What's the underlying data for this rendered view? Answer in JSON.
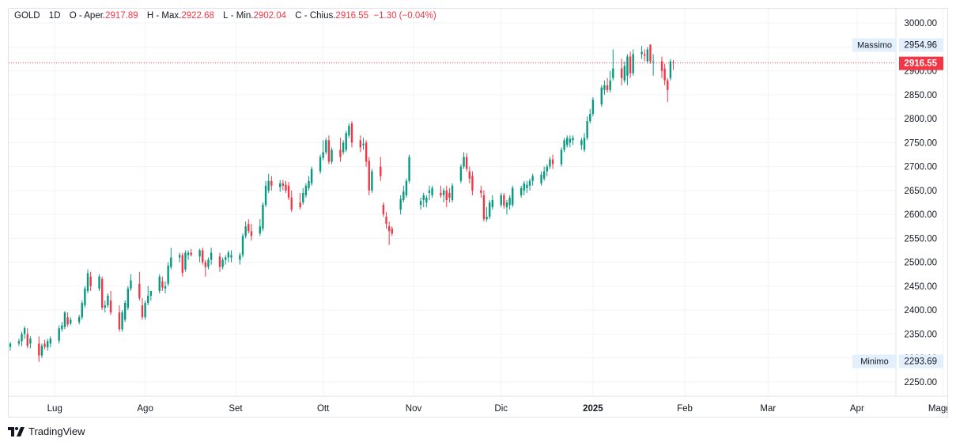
{
  "legend": {
    "symbol": "GOLD",
    "interval": "1D",
    "open_label": "O",
    "open_text": "- Aper.",
    "open_value": "2917.89",
    "high_label": "H",
    "high_text": "- Max.",
    "high_value": "2922.68",
    "low_label": "L",
    "low_text": "- Min.",
    "low_value": "2902.04",
    "close_label": "C",
    "close_text": "- Chius.",
    "close_value": "2916.55",
    "change_value": "−1.30 (−0.04%)"
  },
  "badges": {
    "max_label": "Massimo",
    "max_value": "2954.96",
    "min_label": "Minimo",
    "min_value": "2293.69",
    "last_value": "2916.55"
  },
  "brand": {
    "name": "TradingView"
  },
  "colors": {
    "up": "#089981",
    "down": "#f23645",
    "grid": "#f0f3fa",
    "text": "#131722",
    "badge_bg": "#e3effd"
  },
  "chart_data": {
    "type": "candlestick",
    "ylim": [
      2220,
      3030
    ],
    "y_ticks": [
      2250,
      2300,
      2350,
      2400,
      2450,
      2500,
      2550,
      2600,
      2650,
      2700,
      2750,
      2800,
      2850,
      2900,
      2950,
      3000
    ],
    "x_labels": [
      "Lug",
      "Ago",
      "Set",
      "Ott",
      "Nov",
      "Dic",
      "2025",
      "Feb",
      "Mar",
      "Apr",
      "Maggio"
    ],
    "x_label_days": [
      15.5,
      47,
      78.5,
      109,
      140.5,
      171,
      203,
      235,
      264,
      295,
      325
    ],
    "last_price": 2916.55,
    "highest": 2954.96,
    "lowest": 2293.69,
    "candles": [
      {
        "d": 0,
        "o": 2323,
        "h": 2333,
        "l": 2315,
        "c": 2330
      },
      {
        "d": 3,
        "o": 2330,
        "h": 2340,
        "l": 2325,
        "c": 2335
      },
      {
        "d": 4,
        "o": 2335,
        "h": 2355,
        "l": 2325,
        "c": 2350
      },
      {
        "d": 5,
        "o": 2350,
        "h": 2366,
        "l": 2340,
        "c": 2362
      },
      {
        "d": 6,
        "o": 2350,
        "h": 2362,
        "l": 2320,
        "c": 2325
      },
      {
        "d": 7,
        "o": 2330,
        "h": 2345,
        "l": 2320,
        "c": 2340
      },
      {
        "d": 10,
        "o": 2330,
        "h": 2345,
        "l": 2292,
        "c": 2305
      },
      {
        "d": 11,
        "o": 2305,
        "h": 2330,
        "l": 2300,
        "c": 2325
      },
      {
        "d": 12,
        "o": 2330,
        "h": 2338,
        "l": 2318,
        "c": 2323
      },
      {
        "d": 13,
        "o": 2322,
        "h": 2340,
        "l": 2315,
        "c": 2335
      },
      {
        "d": 14,
        "o": 2330,
        "h": 2345,
        "l": 2322,
        "c": 2340
      },
      {
        "d": 17,
        "o": 2336,
        "h": 2368,
        "l": 2330,
        "c": 2362
      },
      {
        "d": 18,
        "o": 2360,
        "h": 2375,
        "l": 2355,
        "c": 2368
      },
      {
        "d": 19,
        "o": 2365,
        "h": 2398,
        "l": 2360,
        "c": 2395
      },
      {
        "d": 20,
        "o": 2385,
        "h": 2395,
        "l": 2365,
        "c": 2370
      },
      {
        "d": 21,
        "o": 2372,
        "h": 2385,
        "l": 2368,
        "c": 2380
      },
      {
        "d": 24,
        "o": 2375,
        "h": 2390,
        "l": 2370,
        "c": 2385
      },
      {
        "d": 25,
        "o": 2385,
        "h": 2420,
        "l": 2380,
        "c": 2415
      },
      {
        "d": 26,
        "o": 2410,
        "h": 2450,
        "l": 2405,
        "c": 2445
      },
      {
        "d": 27,
        "o": 2440,
        "h": 2485,
        "l": 2435,
        "c": 2477
      },
      {
        "d": 28,
        "o": 2470,
        "h": 2480,
        "l": 2440,
        "c": 2450
      },
      {
        "d": 31,
        "o": 2445,
        "h": 2475,
        "l": 2440,
        "c": 2470
      },
      {
        "d": 32,
        "o": 2465,
        "h": 2470,
        "l": 2400,
        "c": 2405
      },
      {
        "d": 33,
        "o": 2405,
        "h": 2420,
        "l": 2395,
        "c": 2410
      },
      {
        "d": 34,
        "o": 2410,
        "h": 2435,
        "l": 2405,
        "c": 2430
      },
      {
        "d": 35,
        "o": 2420,
        "h": 2440,
        "l": 2390,
        "c": 2395
      },
      {
        "d": 38,
        "o": 2395,
        "h": 2410,
        "l": 2355,
        "c": 2360
      },
      {
        "d": 39,
        "o": 2360,
        "h": 2400,
        "l": 2355,
        "c": 2395
      },
      {
        "d": 40,
        "o": 2380,
        "h": 2420,
        "l": 2375,
        "c": 2415
      },
      {
        "d": 41,
        "o": 2405,
        "h": 2450,
        "l": 2400,
        "c": 2445
      },
      {
        "d": 42,
        "o": 2445,
        "h": 2475,
        "l": 2440,
        "c": 2462
      },
      {
        "d": 45,
        "o": 2455,
        "h": 2480,
        "l": 2420,
        "c": 2425
      },
      {
        "d": 46,
        "o": 2410,
        "h": 2425,
        "l": 2380,
        "c": 2385
      },
      {
        "d": 47,
        "o": 2385,
        "h": 2420,
        "l": 2380,
        "c": 2415
      },
      {
        "d": 48,
        "o": 2415,
        "h": 2450,
        "l": 2410,
        "c": 2430
      },
      {
        "d": 49,
        "o": 2430,
        "h": 2440,
        "l": 2420,
        "c": 2440
      },
      {
        "d": 52,
        "o": 2440,
        "h": 2475,
        "l": 2435,
        "c": 2470
      },
      {
        "d": 53,
        "o": 2460,
        "h": 2470,
        "l": 2440,
        "c": 2447
      },
      {
        "d": 54,
        "o": 2445,
        "h": 2460,
        "l": 2435,
        "c": 2450
      },
      {
        "d": 55,
        "o": 2455,
        "h": 2500,
        "l": 2450,
        "c": 2493
      },
      {
        "d": 56,
        "o": 2490,
        "h": 2530,
        "l": 2485,
        "c": 2510
      },
      {
        "d": 59,
        "o": 2510,
        "h": 2520,
        "l": 2500,
        "c": 2515
      },
      {
        "d": 60,
        "o": 2515,
        "h": 2520,
        "l": 2470,
        "c": 2478
      },
      {
        "d": 61,
        "o": 2485,
        "h": 2525,
        "l": 2480,
        "c": 2520
      },
      {
        "d": 62,
        "o": 2515,
        "h": 2525,
        "l": 2505,
        "c": 2520
      },
      {
        "d": 63,
        "o": 2520,
        "h": 2528,
        "l": 2512,
        "c": 2515
      },
      {
        "d": 66,
        "o": 2512,
        "h": 2528,
        "l": 2500,
        "c": 2525
      },
      {
        "d": 67,
        "o": 2525,
        "h": 2530,
        "l": 2495,
        "c": 2500
      },
      {
        "d": 68,
        "o": 2500,
        "h": 2505,
        "l": 2470,
        "c": 2490
      },
      {
        "d": 69,
        "o": 2490,
        "h": 2510,
        "l": 2485,
        "c": 2505
      },
      {
        "d": 70,
        "o": 2505,
        "h": 2530,
        "l": 2495,
        "c": 2520
      },
      {
        "d": 73,
        "o": 2512,
        "h": 2520,
        "l": 2480,
        "c": 2490
      },
      {
        "d": 74,
        "o": 2490,
        "h": 2510,
        "l": 2485,
        "c": 2505
      },
      {
        "d": 75,
        "o": 2505,
        "h": 2515,
        "l": 2495,
        "c": 2510
      },
      {
        "d": 76,
        "o": 2510,
        "h": 2525,
        "l": 2500,
        "c": 2520
      },
      {
        "d": 77,
        "o": 2510,
        "h": 2525,
        "l": 2500,
        "c": 2515
      },
      {
        "d": 80,
        "o": 2505,
        "h": 2520,
        "l": 2495,
        "c": 2515
      },
      {
        "d": 81,
        "o": 2515,
        "h": 2560,
        "l": 2510,
        "c": 2555
      },
      {
        "d": 82,
        "o": 2555,
        "h": 2585,
        "l": 2550,
        "c": 2575
      },
      {
        "d": 83,
        "o": 2580,
        "h": 2590,
        "l": 2560,
        "c": 2565
      },
      {
        "d": 84,
        "o": 2565,
        "h": 2580,
        "l": 2545,
        "c": 2555
      },
      {
        "d": 87,
        "o": 2560,
        "h": 2590,
        "l": 2555,
        "c": 2575
      },
      {
        "d": 88,
        "o": 2570,
        "h": 2625,
        "l": 2565,
        "c": 2620
      },
      {
        "d": 89,
        "o": 2620,
        "h": 2670,
        "l": 2615,
        "c": 2660
      },
      {
        "d": 90,
        "o": 2650,
        "h": 2685,
        "l": 2645,
        "c": 2670
      },
      {
        "d": 91,
        "o": 2670,
        "h": 2680,
        "l": 2650,
        "c": 2660
      },
      {
        "d": 94,
        "o": 2657,
        "h": 2672,
        "l": 2647,
        "c": 2665
      },
      {
        "d": 95,
        "o": 2665,
        "h": 2672,
        "l": 2650,
        "c": 2660
      },
      {
        "d": 96,
        "o": 2662,
        "h": 2670,
        "l": 2645,
        "c": 2650
      },
      {
        "d": 97,
        "o": 2660,
        "h": 2668,
        "l": 2630,
        "c": 2635
      },
      {
        "d": 98,
        "o": 2635,
        "h": 2650,
        "l": 2605,
        "c": 2610
      },
      {
        "d": 101,
        "o": 2625,
        "h": 2645,
        "l": 2610,
        "c": 2615
      },
      {
        "d": 102,
        "o": 2625,
        "h": 2655,
        "l": 2620,
        "c": 2645
      },
      {
        "d": 103,
        "o": 2640,
        "h": 2665,
        "l": 2635,
        "c": 2660
      },
      {
        "d": 104,
        "o": 2655,
        "h": 2680,
        "l": 2650,
        "c": 2670
      },
      {
        "d": 105,
        "o": 2665,
        "h": 2700,
        "l": 2660,
        "c": 2695
      },
      {
        "d": 108,
        "o": 2690,
        "h": 2725,
        "l": 2685,
        "c": 2720
      },
      {
        "d": 109,
        "o": 2718,
        "h": 2755,
        "l": 2713,
        "c": 2730
      },
      {
        "d": 110,
        "o": 2730,
        "h": 2760,
        "l": 2725,
        "c": 2755
      },
      {
        "d": 111,
        "o": 2755,
        "h": 2765,
        "l": 2705,
        "c": 2710
      },
      {
        "d": 112,
        "o": 2710,
        "h": 2740,
        "l": 2705,
        "c": 2735
      },
      {
        "d": 115,
        "o": 2735,
        "h": 2760,
        "l": 2710,
        "c": 2720
      },
      {
        "d": 116,
        "o": 2730,
        "h": 2755,
        "l": 2725,
        "c": 2750
      },
      {
        "d": 117,
        "o": 2735,
        "h": 2775,
        "l": 2730,
        "c": 2770
      },
      {
        "d": 118,
        "o": 2765,
        "h": 2790,
        "l": 2760,
        "c": 2785
      },
      {
        "d": 119,
        "o": 2790,
        "h": 2795,
        "l": 2740,
        "c": 2750
      },
      {
        "d": 122,
        "o": 2755,
        "h": 2765,
        "l": 2730,
        "c": 2740
      },
      {
        "d": 123,
        "o": 2745,
        "h": 2760,
        "l": 2735,
        "c": 2748
      },
      {
        "d": 124,
        "o": 2750,
        "h": 2755,
        "l": 2700,
        "c": 2710
      },
      {
        "d": 125,
        "o": 2712,
        "h": 2720,
        "l": 2640,
        "c": 2650
      },
      {
        "d": 126,
        "o": 2650,
        "h": 2695,
        "l": 2645,
        "c": 2690
      },
      {
        "d": 129,
        "o": 2700,
        "h": 2720,
        "l": 2670,
        "c": 2680
      },
      {
        "d": 130,
        "o": 2620,
        "h": 2625,
        "l": 2595,
        "c": 2600
      },
      {
        "d": 131,
        "o": 2595,
        "h": 2605,
        "l": 2570,
        "c": 2580
      },
      {
        "d": 132,
        "o": 2575,
        "h": 2585,
        "l": 2536,
        "c": 2565
      },
      {
        "d": 133,
        "o": 2570,
        "h": 2575,
        "l": 2555,
        "c": 2560
      },
      {
        "d": 136,
        "o": 2610,
        "h": 2640,
        "l": 2600,
        "c": 2632
      },
      {
        "d": 137,
        "o": 2630,
        "h": 2660,
        "l": 2625,
        "c": 2648
      },
      {
        "d": 138,
        "o": 2640,
        "h": 2675,
        "l": 2635,
        "c": 2670
      },
      {
        "d": 139,
        "o": 2670,
        "h": 2725,
        "l": 2665,
        "c": 2720
      },
      {
        "d": 143,
        "o": 2620,
        "h": 2635,
        "l": 2610,
        "c": 2628
      },
      {
        "d": 144,
        "o": 2630,
        "h": 2645,
        "l": 2615,
        "c": 2640
      },
      {
        "d": 145,
        "o": 2625,
        "h": 2640,
        "l": 2615,
        "c": 2635
      },
      {
        "d": 146,
        "o": 2645,
        "h": 2660,
        "l": 2630,
        "c": 2650
      },
      {
        "d": 147,
        "o": 2640,
        "h": 2660,
        "l": 2635,
        "c": 2655
      },
      {
        "d": 150,
        "o": 2645,
        "h": 2660,
        "l": 2635,
        "c": 2640
      },
      {
        "d": 151,
        "o": 2640,
        "h": 2655,
        "l": 2625,
        "c": 2650
      },
      {
        "d": 152,
        "o": 2650,
        "h": 2660,
        "l": 2615,
        "c": 2630
      },
      {
        "d": 153,
        "o": 2645,
        "h": 2655,
        "l": 2625,
        "c": 2635
      },
      {
        "d": 154,
        "o": 2630,
        "h": 2665,
        "l": 2625,
        "c": 2660
      },
      {
        "d": 157,
        "o": 2670,
        "h": 2705,
        "l": 2665,
        "c": 2700
      },
      {
        "d": 158,
        "o": 2700,
        "h": 2730,
        "l": 2695,
        "c": 2720
      },
      {
        "d": 159,
        "o": 2720,
        "h": 2728,
        "l": 2690,
        "c": 2695
      },
      {
        "d": 160,
        "o": 2690,
        "h": 2700,
        "l": 2665,
        "c": 2675
      },
      {
        "d": 161,
        "o": 2680,
        "h": 2690,
        "l": 2640,
        "c": 2650
      },
      {
        "d": 164,
        "o": 2650,
        "h": 2660,
        "l": 2635,
        "c": 2645
      },
      {
        "d": 165,
        "o": 2640,
        "h": 2650,
        "l": 2585,
        "c": 2590
      },
      {
        "d": 166,
        "o": 2590,
        "h": 2615,
        "l": 2585,
        "c": 2595
      },
      {
        "d": 167,
        "o": 2595,
        "h": 2630,
        "l": 2590,
        "c": 2625
      },
      {
        "d": 168,
        "o": 2615,
        "h": 2640,
        "l": 2610,
        "c": 2630
      },
      {
        "d": 171,
        "o": 2620,
        "h": 2645,
        "l": 2615,
        "c": 2640
      },
      {
        "d": 172,
        "o": 2640,
        "h": 2645,
        "l": 2612,
        "c": 2618
      },
      {
        "d": 173,
        "o": 2615,
        "h": 2630,
        "l": 2600,
        "c": 2625
      },
      {
        "d": 174,
        "o": 2620,
        "h": 2640,
        "l": 2610,
        "c": 2635
      },
      {
        "d": 175,
        "o": 2620,
        "h": 2660,
        "l": 2615,
        "c": 2655
      },
      {
        "d": 178,
        "o": 2640,
        "h": 2660,
        "l": 2635,
        "c": 2655
      },
      {
        "d": 179,
        "o": 2650,
        "h": 2670,
        "l": 2640,
        "c": 2665
      },
      {
        "d": 180,
        "o": 2655,
        "h": 2670,
        "l": 2645,
        "c": 2662
      },
      {
        "d": 181,
        "o": 2660,
        "h": 2675,
        "l": 2650,
        "c": 2670
      },
      {
        "d": 182,
        "o": 2670,
        "h": 2685,
        "l": 2660,
        "c": 2680
      },
      {
        "d": 185,
        "o": 2665,
        "h": 2690,
        "l": 2660,
        "c": 2683
      },
      {
        "d": 186,
        "o": 2675,
        "h": 2700,
        "l": 2670,
        "c": 2690
      },
      {
        "d": 187,
        "o": 2690,
        "h": 2705,
        "l": 2680,
        "c": 2700
      },
      {
        "d": 188,
        "o": 2700,
        "h": 2720,
        "l": 2695,
        "c": 2715
      },
      {
        "d": 189,
        "o": 2715,
        "h": 2725,
        "l": 2695,
        "c": 2705
      },
      {
        "d": 192,
        "o": 2705,
        "h": 2740,
        "l": 2700,
        "c": 2735
      },
      {
        "d": 193,
        "o": 2735,
        "h": 2760,
        "l": 2730,
        "c": 2755
      },
      {
        "d": 194,
        "o": 2745,
        "h": 2765,
        "l": 2740,
        "c": 2760
      },
      {
        "d": 195,
        "o": 2750,
        "h": 2765,
        "l": 2740,
        "c": 2758
      },
      {
        "d": 196,
        "o": 2755,
        "h": 2765,
        "l": 2745,
        "c": 2760
      },
      {
        "d": 199,
        "o": 2745,
        "h": 2760,
        "l": 2735,
        "c": 2755
      },
      {
        "d": 200,
        "o": 2735,
        "h": 2770,
        "l": 2730,
        "c": 2760
      },
      {
        "d": 201,
        "o": 2760,
        "h": 2805,
        "l": 2755,
        "c": 2795
      },
      {
        "d": 202,
        "o": 2795,
        "h": 2820,
        "l": 2790,
        "c": 2810
      },
      {
        "d": 203,
        "o": 2810,
        "h": 2845,
        "l": 2805,
        "c": 2840
      },
      {
        "d": 206,
        "o": 2830,
        "h": 2870,
        "l": 2825,
        "c": 2865
      },
      {
        "d": 207,
        "o": 2860,
        "h": 2880,
        "l": 2850,
        "c": 2870
      },
      {
        "d": 208,
        "o": 2870,
        "h": 2885,
        "l": 2855,
        "c": 2860
      },
      {
        "d": 209,
        "o": 2860,
        "h": 2900,
        "l": 2855,
        "c": 2880
      },
      {
        "d": 210,
        "o": 2885,
        "h": 2945,
        "l": 2880,
        "c": 2905
      },
      {
        "d": 213,
        "o": 2905,
        "h": 2925,
        "l": 2870,
        "c": 2885
      },
      {
        "d": 214,
        "o": 2880,
        "h": 2920,
        "l": 2875,
        "c": 2910
      },
      {
        "d": 215,
        "o": 2890,
        "h": 2935,
        "l": 2870,
        "c": 2930
      },
      {
        "d": 216,
        "o": 2930,
        "h": 2940,
        "l": 2885,
        "c": 2895
      },
      {
        "d": 217,
        "o": 2895,
        "h": 2945,
        "l": 2890,
        "c": 2935
      },
      {
        "d": 220,
        "o": 2935,
        "h": 2952,
        "l": 2925,
        "c": 2940
      },
      {
        "d": 221,
        "o": 2935,
        "h": 2945,
        "l": 2920,
        "c": 2932
      },
      {
        "d": 222,
        "o": 2920,
        "h": 2950,
        "l": 2915,
        "c": 2945
      },
      {
        "d": 223,
        "o": 2955,
        "h": 2955,
        "l": 2915,
        "c": 2920
      },
      {
        "d": 224,
        "o": 2920,
        "h": 2935,
        "l": 2890,
        "c": 2920
      },
      {
        "d": 227,
        "o": 2920,
        "h": 2930,
        "l": 2885,
        "c": 2900
      },
      {
        "d": 228,
        "o": 2905,
        "h": 2915,
        "l": 2870,
        "c": 2880
      },
      {
        "d": 229,
        "o": 2880,
        "h": 2885,
        "l": 2835,
        "c": 2860
      },
      {
        "d": 230,
        "o": 2885,
        "h": 2925,
        "l": 2880,
        "c": 2920
      },
      {
        "d": 231,
        "o": 2917.89,
        "h": 2922.68,
        "l": 2902.04,
        "c": 2916.55
      }
    ]
  }
}
